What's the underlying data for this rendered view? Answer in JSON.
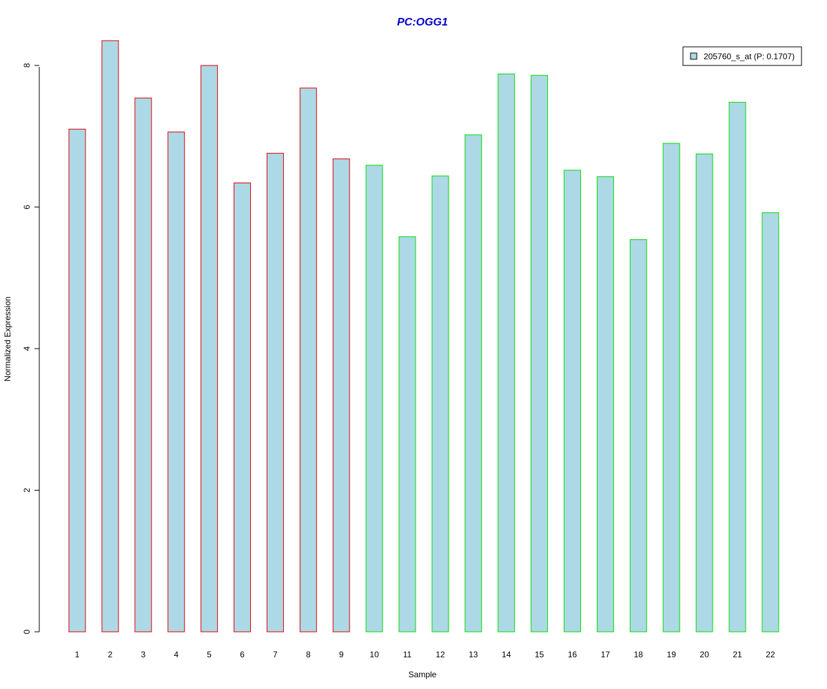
{
  "chart_data": {
    "type": "bar",
    "title": "PC:OGG1",
    "xlabel": "Sample",
    "ylabel": "Normalized Expression",
    "categories": [
      "1",
      "2",
      "3",
      "4",
      "5",
      "6",
      "7",
      "8",
      "9",
      "10",
      "11",
      "12",
      "13",
      "14",
      "15",
      "16",
      "17",
      "18",
      "19",
      "20",
      "21",
      "22"
    ],
    "series": [
      {
        "name": "205760_s_at (P: 0.1707)",
        "values": [
          7.1,
          8.35,
          7.54,
          7.06,
          8.0,
          6.34,
          6.76,
          7.68,
          6.68,
          6.59,
          5.58,
          6.44,
          7.02,
          7.88,
          7.86,
          6.52,
          6.43,
          5.54,
          6.9,
          6.75,
          7.48,
          5.92
        ]
      }
    ],
    "group_border_colors": [
      "#e00000",
      "#e00000",
      "#e00000",
      "#e00000",
      "#e00000",
      "#e00000",
      "#e00000",
      "#e00000",
      "#e00000",
      "#00dd00",
      "#00dd00",
      "#00dd00",
      "#00dd00",
      "#00dd00",
      "#00dd00",
      "#00dd00",
      "#00dd00",
      "#00dd00",
      "#00dd00",
      "#00dd00",
      "#00dd00",
      "#00dd00"
    ],
    "bar_fill": "#add8e6",
    "title_color": "#0000cc",
    "ylim": [
      0,
      8.35
    ],
    "yticks": [
      0,
      2,
      4,
      6,
      8
    ],
    "grid": false,
    "legend_position": "top-right"
  }
}
